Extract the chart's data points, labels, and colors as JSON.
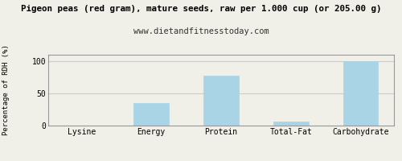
{
  "title": "Pigeon peas (red gram), mature seeds, raw per 1.000 cup (or 205.00 g)",
  "subtitle": "www.dietandfitnesstoday.com",
  "categories": [
    "Lysine",
    "Energy",
    "Protein",
    "Total-Fat",
    "Carbohydrate"
  ],
  "values": [
    0,
    35,
    78,
    6,
    100
  ],
  "bar_color": "#a8d4e6",
  "ylabel": "Percentage of RDH (%)",
  "ylim": [
    0,
    110
  ],
  "yticks": [
    0,
    50,
    100
  ],
  "bg_color": "#f0f0e8",
  "border_color": "#999999",
  "grid_color": "#cccccc",
  "title_fontsize": 7.8,
  "subtitle_fontsize": 7.5,
  "axis_label_fontsize": 6.5,
  "tick_fontsize": 7.0
}
